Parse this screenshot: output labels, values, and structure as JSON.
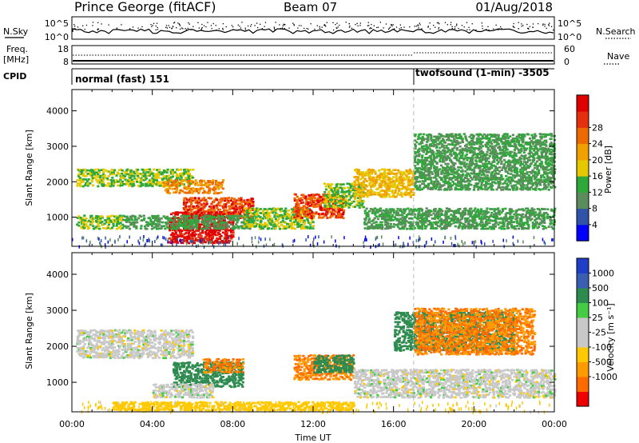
{
  "header": {
    "station": "Prince George (fitACF)",
    "beam": "Beam 07",
    "date": "01/Aug/2018"
  },
  "nsky_panel": {
    "left_label": "N.Sky",
    "left_ticks": [
      "10^5",
      "10^0"
    ],
    "right_ticks": [
      "10^5",
      "10^0"
    ],
    "right_label": "N.Search"
  },
  "freq_panel": {
    "left_label_1": "Freq.",
    "left_label_2": "[MHz]",
    "left_ticks": [
      "18",
      "8"
    ],
    "right_ticks": [
      "60",
      "0"
    ],
    "right_label": "Nave"
  },
  "cpid_panel": {
    "label": "CPID",
    "modes": [
      {
        "name": "normal (fast) 151",
        "start_hour": 0
      },
      {
        "name": "twofsound (1-min) -3505",
        "start_hour": 17
      }
    ]
  },
  "colors": {
    "power_scale": [
      "#0000ff",
      "#2f53a6",
      "#5b8c5b",
      "#2fa83a",
      "#e6c800",
      "#f0a000",
      "#ee6a00",
      "#e53010",
      "#e00000"
    ],
    "velocity_scale": [
      "#ee0000",
      "#ff6a00",
      "#ff9a00",
      "#ffc800",
      "#c8c8c8",
      "#c8c8c8",
      "#44cc44",
      "#2e8b4f",
      "#3a5fb0",
      "#1f3fc8"
    ]
  },
  "chart_data": [
    {
      "type": "heatmap",
      "name": "Power",
      "ylabel": "Slant Range [km]",
      "yticks": [
        1000,
        2000,
        3000,
        4000
      ],
      "xticks": [
        "00:00",
        "04:00",
        "08:00",
        "12:00",
        "16:00",
        "20:00",
        "00:00"
      ],
      "xlim_hours": [
        0,
        24
      ],
      "colorbar_label": "Power [dB]",
      "colorbar_ticks": [
        "4",
        "8",
        "12",
        "16",
        "20",
        "24",
        "28"
      ],
      "regions": [
        {
          "hours": [
            0.2,
            6.0
          ],
          "range_km": [
            1900,
            2400
          ],
          "level": 12
        },
        {
          "hours": [
            4.5,
            7.5
          ],
          "range_km": [
            1700,
            2100
          ],
          "level": 20
        },
        {
          "hours": [
            5.5,
            9.0
          ],
          "range_km": [
            1000,
            1600
          ],
          "level": 24
        },
        {
          "hours": [
            4.8,
            8.0
          ],
          "range_km": [
            300,
            1200
          ],
          "level": 28
        },
        {
          "hours": [
            0.2,
            2.5
          ],
          "range_km": [
            700,
            1100
          ],
          "level": 12
        },
        {
          "hours": [
            2.5,
            9.0
          ],
          "range_km": [
            700,
            1100
          ],
          "level": 8
        },
        {
          "hours": [
            8.5,
            12.0
          ],
          "range_km": [
            700,
            1300
          ],
          "level": 12
        },
        {
          "hours": [
            11.0,
            13.5
          ],
          "range_km": [
            1000,
            1700
          ],
          "level": 24
        },
        {
          "hours": [
            12.5,
            14.5
          ],
          "range_km": [
            1300,
            2000
          ],
          "level": 12
        },
        {
          "hours": [
            14.0,
            17.0
          ],
          "range_km": [
            1600,
            2400
          ],
          "level": 16
        },
        {
          "hours": [
            14.5,
            24.0
          ],
          "range_km": [
            700,
            1300
          ],
          "level": 8
        },
        {
          "hours": [
            17.0,
            24.0
          ],
          "range_km": [
            1800,
            3400
          ],
          "level": 8
        }
      ]
    },
    {
      "type": "heatmap",
      "name": "Velocity",
      "ylabel": "Slant Range [km]",
      "yticks": [
        1000,
        2000,
        3000,
        4000
      ],
      "xticks": [
        "00:00",
        "04:00",
        "08:00",
        "12:00",
        "16:00",
        "20:00",
        "00:00"
      ],
      "xlim_hours": [
        0,
        24
      ],
      "xlabel": "Time UT",
      "colorbar_label": "Velocity [m s⁻¹]",
      "colorbar_ticks": [
        "1000",
        "500",
        "100",
        "25",
        "-25",
        "-100",
        "-500",
        "-1000"
      ],
      "regions": [
        {
          "hours": [
            0.2,
            6.0
          ],
          "range_km": [
            1700,
            2500
          ],
          "level": 0
        },
        {
          "hours": [
            5.0,
            8.5
          ],
          "range_km": [
            900,
            1600
          ],
          "level": 150
        },
        {
          "hours": [
            6.5,
            8.5
          ],
          "range_km": [
            1300,
            1700
          ],
          "level": -300
        },
        {
          "hours": [
            4.0,
            7.0
          ],
          "range_km": [
            600,
            1000
          ],
          "level": 0
        },
        {
          "hours": [
            11.0,
            14.0
          ],
          "range_km": [
            1100,
            1800
          ],
          "level": -300
        },
        {
          "hours": [
            12.0,
            14.0
          ],
          "range_km": [
            1300,
            1800
          ],
          "level": 150
        },
        {
          "hours": [
            14.0,
            24.0
          ],
          "range_km": [
            600,
            1400
          ],
          "level": 0
        },
        {
          "hours": [
            16.0,
            22.0
          ],
          "range_km": [
            1900,
            3000
          ],
          "level": 150
        },
        {
          "hours": [
            17.0,
            23.0
          ],
          "range_km": [
            1800,
            3100
          ],
          "level": -300
        },
        {
          "hours": [
            2.0,
            14.0
          ],
          "range_km": [
            250,
            500
          ],
          "level": -60
        }
      ]
    }
  ]
}
